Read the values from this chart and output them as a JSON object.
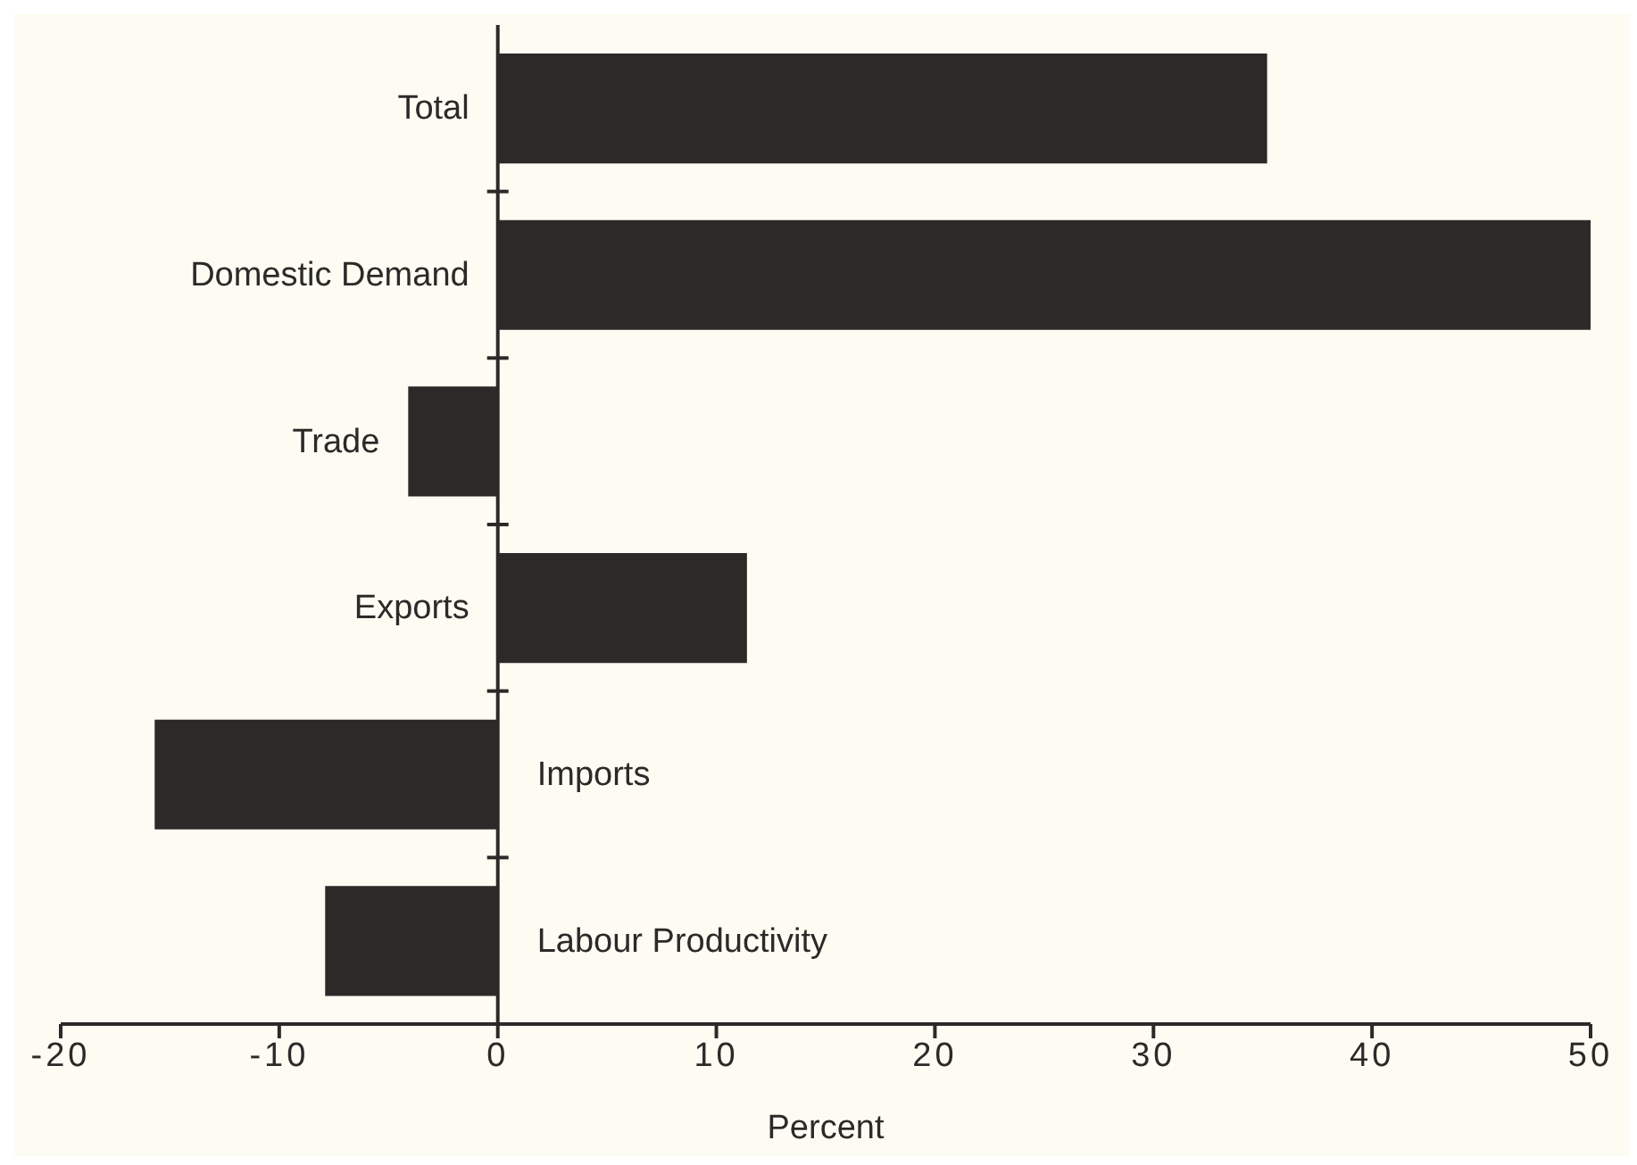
{
  "chart_data": {
    "type": "bar",
    "orientation": "horizontal",
    "xlabel": "Percent",
    "categories": [
      "Total",
      "Domestic Demand",
      "Trade",
      "Exports",
      "Imports",
      "Labour  Productivity"
    ],
    "values": [
      35.2,
      50,
      -4.1,
      11.4,
      -15.7,
      -7.9
    ],
    "color": "#2b2a28",
    "xlim": [
      -20,
      50
    ],
    "xticks": [
      -20,
      -10,
      0,
      10,
      20,
      30,
      40,
      50
    ],
    "grid": false,
    "legend": false
  }
}
